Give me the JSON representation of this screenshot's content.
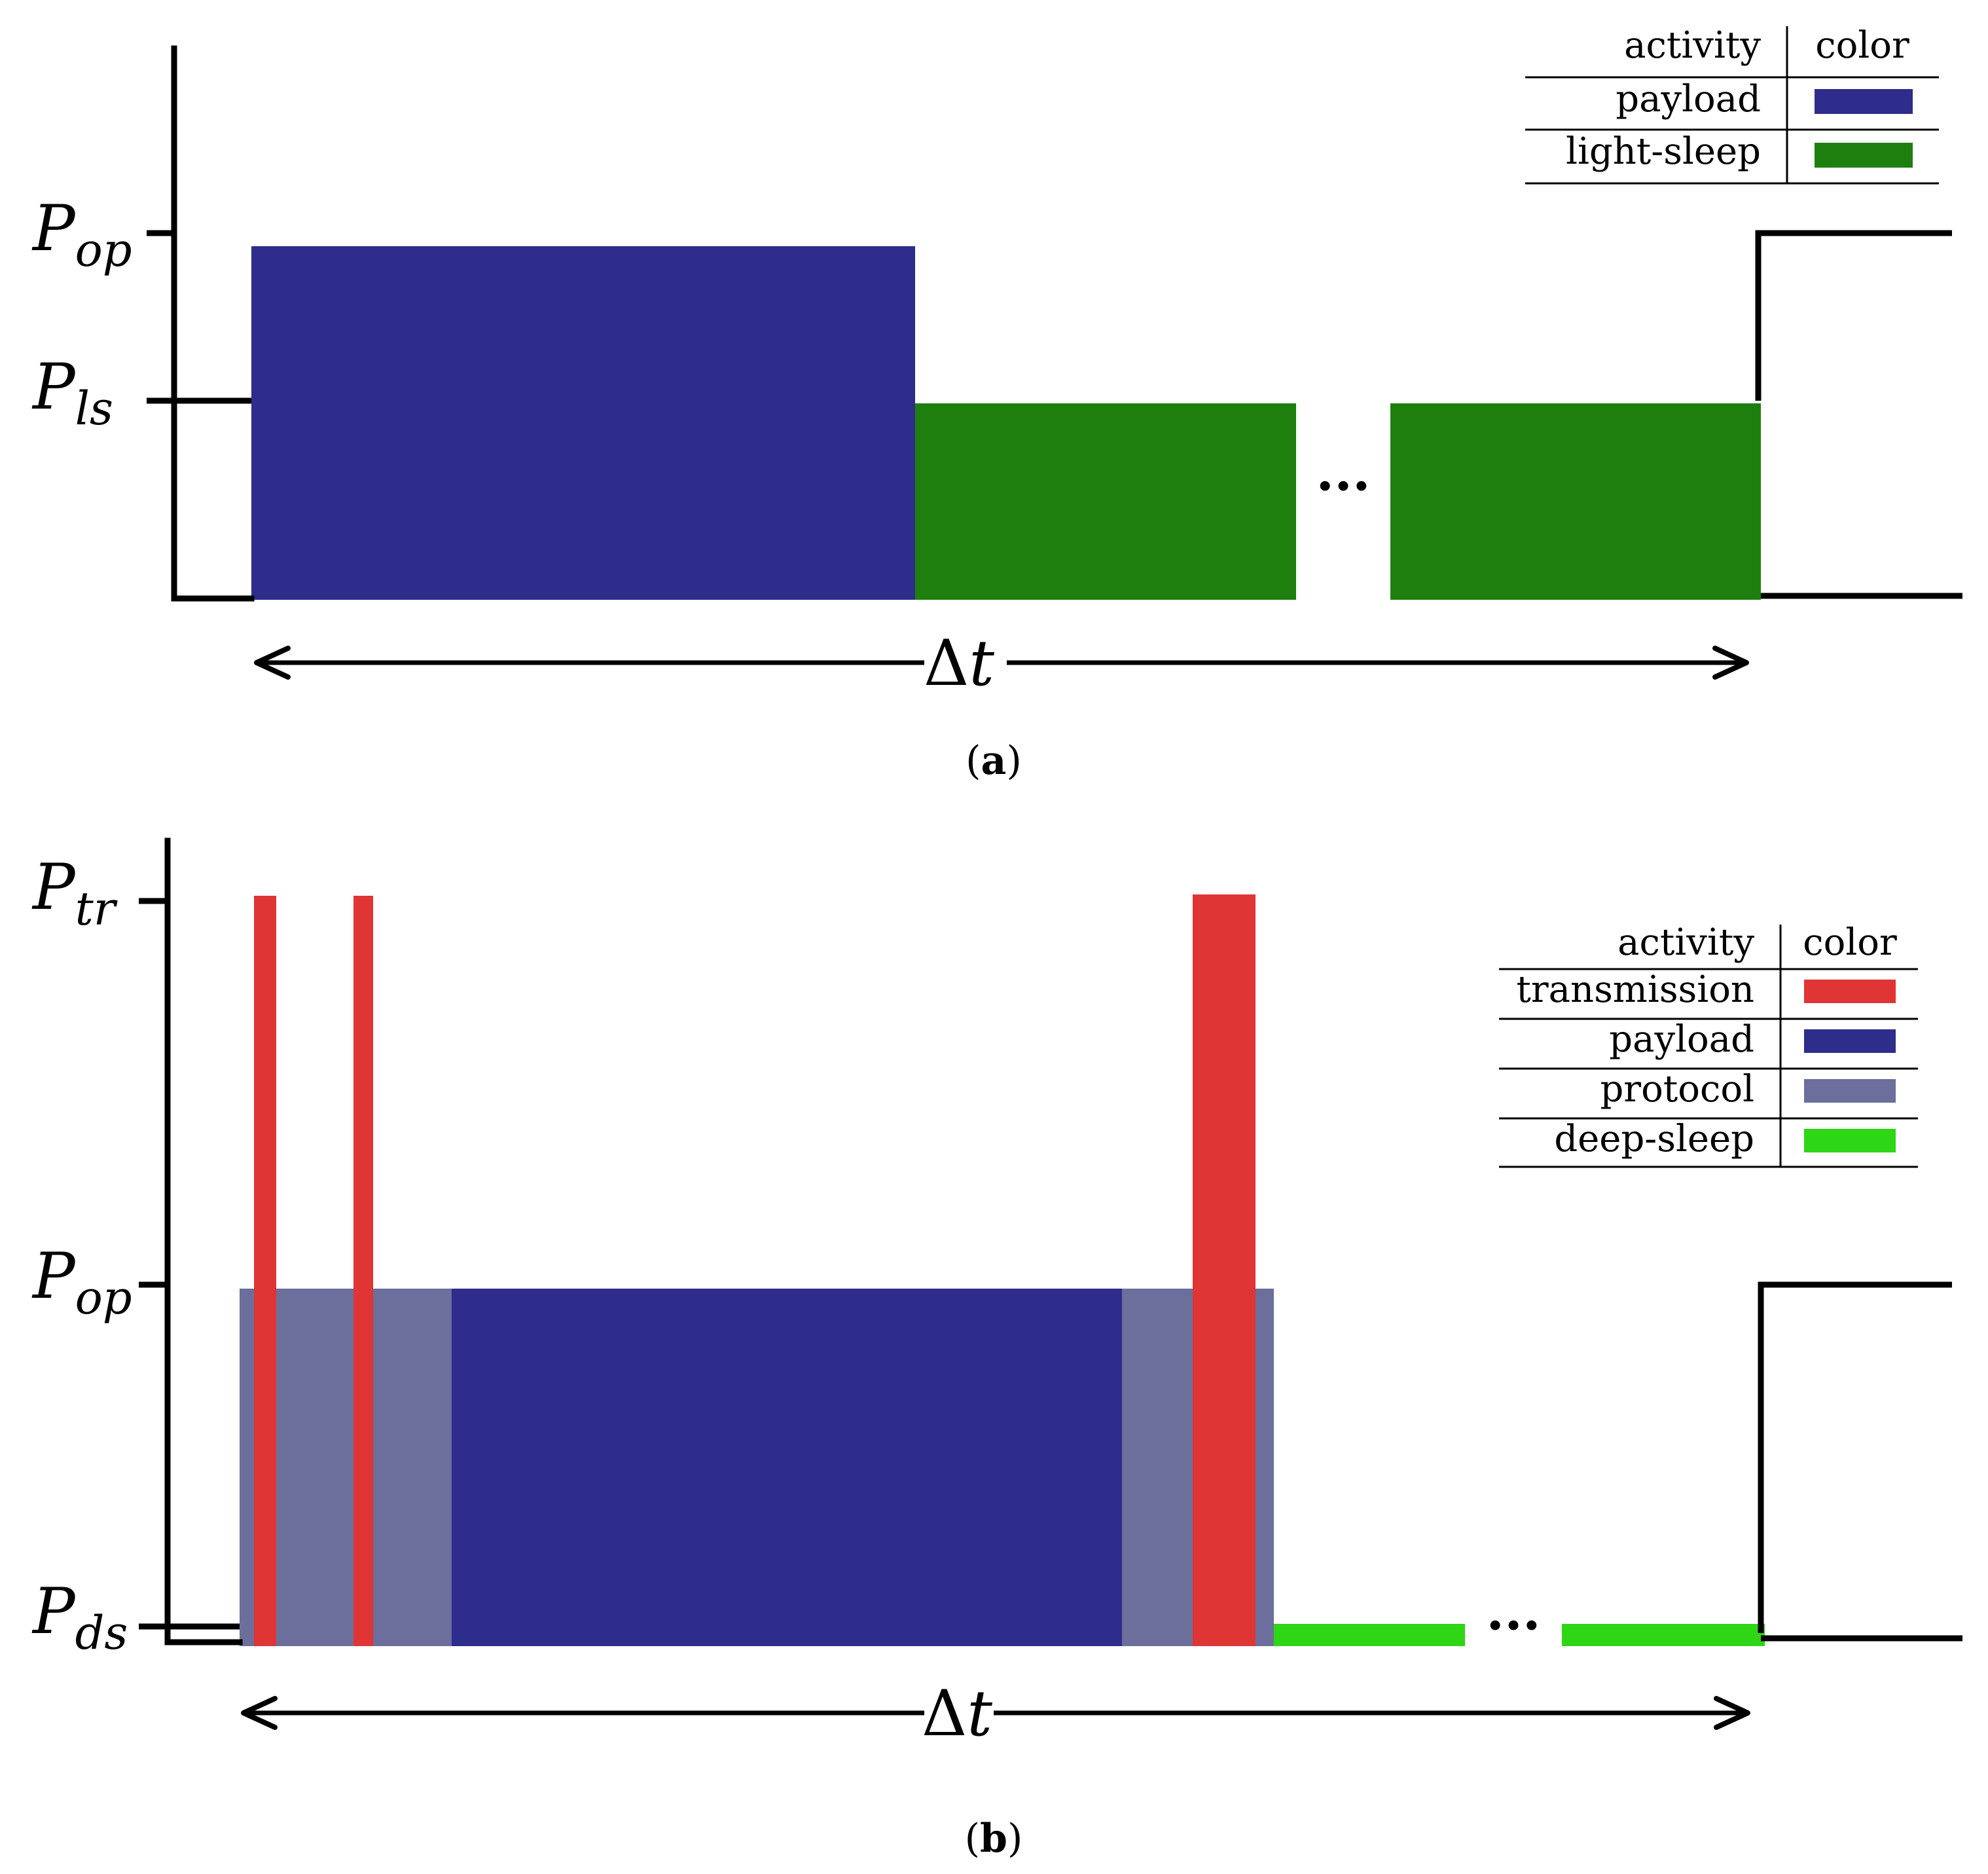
{
  "panel_a": {
    "caption_open": "(",
    "caption_letter": "a",
    "caption_close": ")",
    "y_levels": [
      {
        "main": "P",
        "sub": "op"
      },
      {
        "main": "P",
        "sub": "ls"
      }
    ],
    "interval_label_delta": "Δ",
    "interval_label_t": "t",
    "ellipsis": "···",
    "legend": {
      "header_activity": "activity",
      "header_color": "color",
      "rows": [
        {
          "label": "payload",
          "color": "#2e2d8c"
        },
        {
          "label": "light-sleep",
          "color": "#1f7f0e"
        }
      ]
    },
    "bars": [
      {
        "activity": "payload",
        "color": "#2e2d8c"
      },
      {
        "activity": "light-sleep",
        "color": "#1f7f0e"
      },
      {
        "activity": "light-sleep",
        "color": "#1f7f0e"
      }
    ]
  },
  "panel_b": {
    "caption_open": "(",
    "caption_letter": "b",
    "caption_close": ")",
    "y_levels": [
      {
        "main": "P",
        "sub": "tr"
      },
      {
        "main": "P",
        "sub": "op"
      },
      {
        "main": "P",
        "sub": "ds"
      }
    ],
    "interval_label_delta": "Δ",
    "interval_label_t": "t",
    "ellipsis": "···",
    "legend": {
      "header_activity": "activity",
      "header_color": "color",
      "rows": [
        {
          "label": "transmission",
          "color": "#e03535"
        },
        {
          "label": "payload",
          "color": "#2e2d8c"
        },
        {
          "label": "protocol",
          "color": "#6c6e9b"
        },
        {
          "label": "deep-sleep",
          "color": "#2ed615"
        }
      ]
    },
    "bars": [
      {
        "activity": "protocol",
        "color": "#6c6e9b"
      },
      {
        "activity": "payload",
        "color": "#2e2d8c"
      },
      {
        "activity": "protocol",
        "color": "#6c6e9b"
      },
      {
        "activity": "transmission",
        "color": "#e03535"
      },
      {
        "activity": "transmission",
        "color": "#e03535"
      },
      {
        "activity": "transmission",
        "color": "#e03535"
      },
      {
        "activity": "deep-sleep",
        "color": "#2ed615"
      },
      {
        "activity": "deep-sleep",
        "color": "#2ed615"
      }
    ]
  }
}
